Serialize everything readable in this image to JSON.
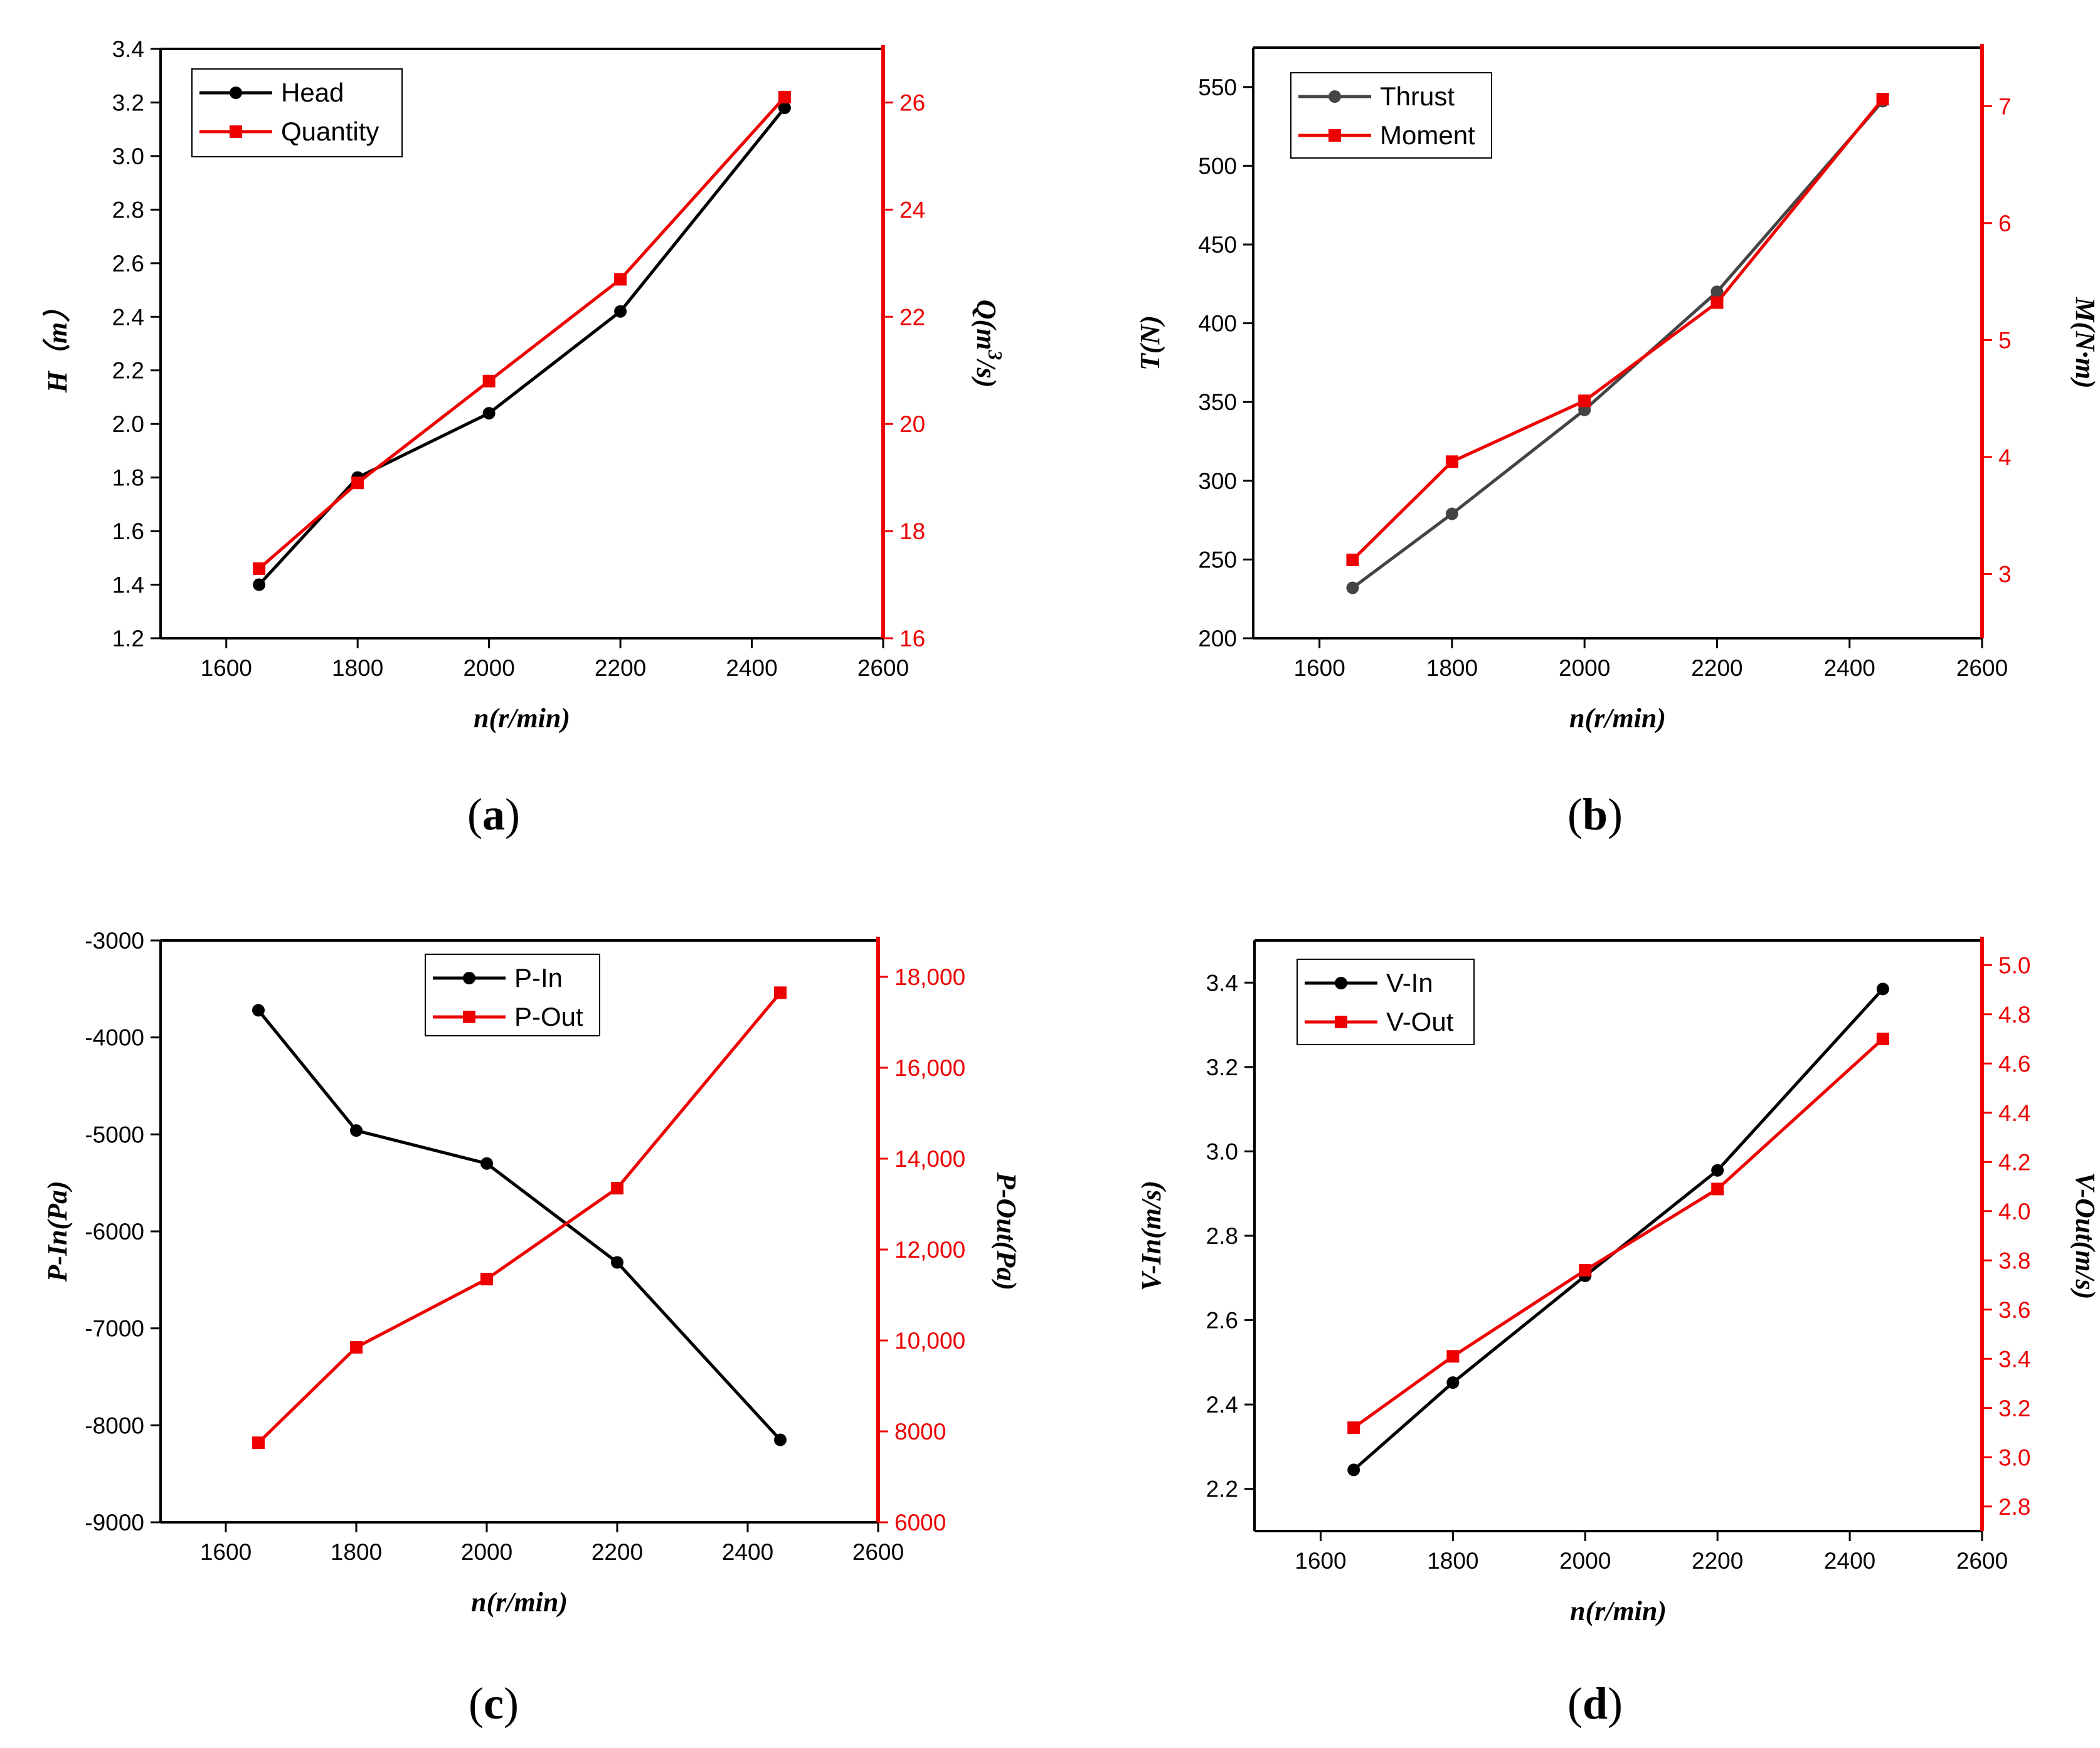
{
  "colors": {
    "black": "#000000",
    "gray": "#444444",
    "red": "#ee0000"
  },
  "chart_data": [
    {
      "id": "a",
      "type": "line",
      "caption": "a",
      "xlabel": "n(r/min)",
      "xlim": [
        1500,
        2600
      ],
      "xticks": [
        1600,
        1800,
        2000,
        2200,
        2400,
        2600
      ],
      "x": [
        1650,
        1800,
        2000,
        2200,
        2450
      ],
      "left_axis": {
        "label_main": "H",
        "label_unit": "（m）",
        "ylim": [
          1.2,
          3.4
        ],
        "ticks": [
          1.2,
          1.4,
          1.6,
          1.8,
          2.0,
          2.2,
          2.4,
          2.6,
          2.8,
          3.0,
          3.2,
          3.4
        ],
        "tick_labels": [
          "1.2",
          "1.4",
          "1.6",
          "1.8",
          "2.0",
          "2.2",
          "2.4",
          "2.6",
          "2.8",
          "3.0",
          "3.2",
          "3.4"
        ]
      },
      "right_axis": {
        "label_main": "Q(m",
        "label_sup": "3",
        "label_end": "/s)",
        "ylim": [
          16,
          27
        ],
        "ticks": [
          16,
          18,
          20,
          22,
          24,
          26
        ],
        "tick_labels": [
          "16",
          "18",
          "20",
          "22",
          "24",
          "26"
        ]
      },
      "legend_position": "top-left",
      "series": [
        {
          "name": "Head",
          "axis": "left",
          "color": "#000000",
          "marker": "circle",
          "values": [
            1.4,
            1.8,
            2.04,
            2.42,
            3.18
          ]
        },
        {
          "name": "Quantity",
          "axis": "right",
          "color": "#ee0000",
          "marker": "square",
          "values": [
            17.3,
            18.9,
            20.8,
            22.7,
            26.1
          ]
        }
      ]
    },
    {
      "id": "b",
      "type": "line",
      "caption": "b",
      "xlabel": "n(r/min)",
      "xlim": [
        1500,
        2600
      ],
      "xticks": [
        1600,
        1800,
        2000,
        2200,
        2400,
        2600
      ],
      "x": [
        1650,
        1800,
        2000,
        2200,
        2450
      ],
      "left_axis": {
        "label_main": "T(N)",
        "ylim": [
          200,
          575
        ],
        "ticks": [
          200,
          250,
          300,
          350,
          400,
          450,
          500,
          550
        ],
        "tick_labels": [
          "200",
          "250",
          "300",
          "350",
          "400",
          "450",
          "500",
          "550"
        ]
      },
      "right_axis": {
        "label_main": "M(N·m)",
        "ylim": [
          2.45,
          7.5
        ],
        "ticks": [
          3,
          4,
          5,
          6,
          7
        ],
        "tick_labels": [
          "3",
          "4",
          "5",
          "6",
          "7"
        ]
      },
      "legend_position": "top-left",
      "series": [
        {
          "name": "Thrust",
          "axis": "left",
          "color": "#444444",
          "marker": "circle",
          "values": [
            232,
            279,
            345,
            420,
            541
          ]
        },
        {
          "name": "Moment",
          "axis": "right",
          "color": "#ee0000",
          "marker": "square",
          "values": [
            3.12,
            3.96,
            4.48,
            5.32,
            7.06
          ]
        }
      ]
    },
    {
      "id": "c",
      "type": "line",
      "caption": "c",
      "xlabel": "n(r/min)",
      "xlim": [
        1500,
        2600
      ],
      "xticks": [
        1600,
        1800,
        2000,
        2200,
        2400,
        2600
      ],
      "x": [
        1650,
        1800,
        2000,
        2200,
        2450
      ],
      "left_axis": {
        "label_main": "P-In(Pa)",
        "ylim": [
          -9000,
          -3000
        ],
        "ticks": [
          -9000,
          -8000,
          -7000,
          -6000,
          -5000,
          -4000,
          -3000
        ],
        "tick_labels": [
          "-9000",
          "-8000",
          "-7000",
          "-6000",
          "-5000",
          "-4000",
          "-3000"
        ]
      },
      "right_axis": {
        "label_main": "P-Out(Pa)",
        "ylim": [
          6000,
          18800
        ],
        "ticks": [
          6000,
          8000,
          10000,
          12000,
          14000,
          16000,
          18000
        ],
        "tick_labels": [
          "6000",
          "8000",
          "10,000",
          "12,000",
          "14,000",
          "16,000",
          "18,000"
        ]
      },
      "legend_position": "top-center",
      "series": [
        {
          "name": "P-In",
          "axis": "left",
          "color": "#000000",
          "marker": "circle",
          "values": [
            -3720,
            -4960,
            -5300,
            -6320,
            -8150
          ]
        },
        {
          "name": "P-Out",
          "axis": "right",
          "color": "#ee0000",
          "marker": "square",
          "values": [
            7750,
            9850,
            11350,
            13350,
            17650
          ]
        }
      ]
    },
    {
      "id": "d",
      "type": "line",
      "caption": "d",
      "xlabel": "n(r/min)",
      "xlim": [
        1500,
        2600
      ],
      "xticks": [
        1600,
        1800,
        2000,
        2200,
        2400,
        2600
      ],
      "x": [
        1650,
        1800,
        2000,
        2200,
        2450
      ],
      "left_axis": {
        "label_main": "V-In(m/s)",
        "ylim": [
          2.1,
          3.5
        ],
        "ticks": [
          2.2,
          2.4,
          2.6,
          2.8,
          3.0,
          3.2,
          3.4
        ],
        "tick_labels": [
          "2.2",
          "2.4",
          "2.6",
          "2.8",
          "3.0",
          "3.2",
          "3.4"
        ]
      },
      "right_axis": {
        "label_main": "V-Out(m/s)",
        "ylim": [
          2.7,
          5.1
        ],
        "ticks": [
          2.8,
          3.0,
          3.2,
          3.4,
          3.6,
          3.8,
          4.0,
          4.2,
          4.4,
          4.6,
          4.8,
          5.0
        ],
        "tick_labels": [
          "2.8",
          "3.0",
          "3.2",
          "3.4",
          "3.6",
          "3.8",
          "4.0",
          "4.2",
          "4.4",
          "4.6",
          "4.8",
          "5.0"
        ]
      },
      "legend_position": "top-left",
      "series": [
        {
          "name": "V-In",
          "axis": "left",
          "color": "#000000",
          "marker": "circle",
          "values": [
            2.245,
            2.452,
            2.705,
            2.955,
            3.385
          ]
        },
        {
          "name": "V-Out",
          "axis": "right",
          "color": "#ee0000",
          "marker": "square",
          "values": [
            3.12,
            3.41,
            3.76,
            4.09,
            4.7
          ]
        }
      ]
    }
  ]
}
